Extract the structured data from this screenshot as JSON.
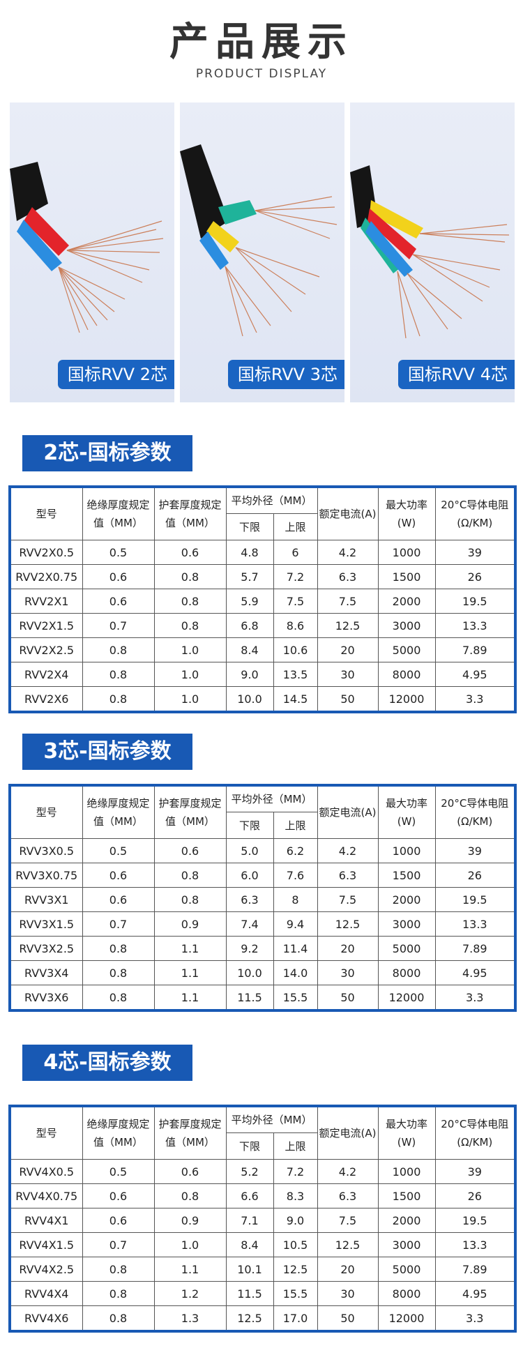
{
  "header": {
    "title": "产品展示",
    "subtitle": "PRODUCT DISPLAY"
  },
  "photos": [
    {
      "label": "国标RVV 2芯",
      "cores": 2
    },
    {
      "label": "国标RVV 3芯",
      "cores": 3
    },
    {
      "label": "国标RVV 4芯",
      "cores": 4
    }
  ],
  "colors": {
    "accent": "#1859b4",
    "label_bg": "#1a64c2"
  },
  "columns": {
    "model": "型号",
    "insulation": "绝缘厚度规定值（MM）",
    "sheath": "护套厚度规定值（MM）",
    "diameter": "平均外径（MM）",
    "lower": "下限",
    "upper": "上限",
    "current": "额定电流(A)",
    "power": "最大功率(W)",
    "resistance": "20°C导体电阻(Ω/KM)"
  },
  "tables": [
    {
      "title": "2芯-国标参数",
      "rows": [
        [
          "RVV2X0.5",
          "0.5",
          "0.6",
          "4.8",
          "6",
          "4.2",
          "1000",
          "39"
        ],
        [
          "RVV2X0.75",
          "0.6",
          "0.8",
          "5.7",
          "7.2",
          "6.3",
          "1500",
          "26"
        ],
        [
          "RVV2X1",
          "0.6",
          "0.8",
          "5.9",
          "7.5",
          "7.5",
          "2000",
          "19.5"
        ],
        [
          "RVV2X1.5",
          "0.7",
          "0.8",
          "6.8",
          "8.6",
          "12.5",
          "3000",
          "13.3"
        ],
        [
          "RVV2X2.5",
          "0.8",
          "1.0",
          "8.4",
          "10.6",
          "20",
          "5000",
          "7.89"
        ],
        [
          "RVV2X4",
          "0.8",
          "1.0",
          "9.0",
          "13.5",
          "30",
          "8000",
          "4.95"
        ],
        [
          "RVV2X6",
          "0.8",
          "1.0",
          "10.0",
          "14.5",
          "50",
          "12000",
          "3.3"
        ]
      ]
    },
    {
      "title": "3芯-国标参数",
      "rows": [
        [
          "RVV3X0.5",
          "0.5",
          "0.6",
          "5.0",
          "6.2",
          "4.2",
          "1000",
          "39"
        ],
        [
          "RVV3X0.75",
          "0.6",
          "0.8",
          "6.0",
          "7.6",
          "6.3",
          "1500",
          "26"
        ],
        [
          "RVV3X1",
          "0.6",
          "0.8",
          "6.3",
          "8",
          "7.5",
          "2000",
          "19.5"
        ],
        [
          "RVV3X1.5",
          "0.7",
          "0.9",
          "7.4",
          "9.4",
          "12.5",
          "3000",
          "13.3"
        ],
        [
          "RVV3X2.5",
          "0.8",
          "1.1",
          "9.2",
          "11.4",
          "20",
          "5000",
          "7.89"
        ],
        [
          "RVV3X4",
          "0.8",
          "1.1",
          "10.0",
          "14.0",
          "30",
          "8000",
          "4.95"
        ],
        [
          "RVV3X6",
          "0.8",
          "1.1",
          "11.5",
          "15.5",
          "50",
          "12000",
          "3.3"
        ]
      ]
    },
    {
      "title": "4芯-国标参数",
      "rows": [
        [
          "RVV4X0.5",
          "0.5",
          "0.6",
          "5.2",
          "7.2",
          "4.2",
          "1000",
          "39"
        ],
        [
          "RVV4X0.75",
          "0.6",
          "0.8",
          "6.6",
          "8.3",
          "6.3",
          "1500",
          "26"
        ],
        [
          "RVV4X1",
          "0.6",
          "0.9",
          "7.1",
          "9.0",
          "7.5",
          "2000",
          "19.5"
        ],
        [
          "RVV4X1.5",
          "0.7",
          "1.0",
          "8.4",
          "10.5",
          "12.5",
          "3000",
          "13.3"
        ],
        [
          "RVV4X2.5",
          "0.8",
          "1.1",
          "10.1",
          "12.5",
          "20",
          "5000",
          "7.89"
        ],
        [
          "RVV4X4",
          "0.8",
          "1.2",
          "11.5",
          "15.5",
          "30",
          "8000",
          "4.95"
        ],
        [
          "RVV4X6",
          "0.8",
          "1.3",
          "12.5",
          "17.0",
          "50",
          "12000",
          "3.3"
        ]
      ]
    }
  ]
}
